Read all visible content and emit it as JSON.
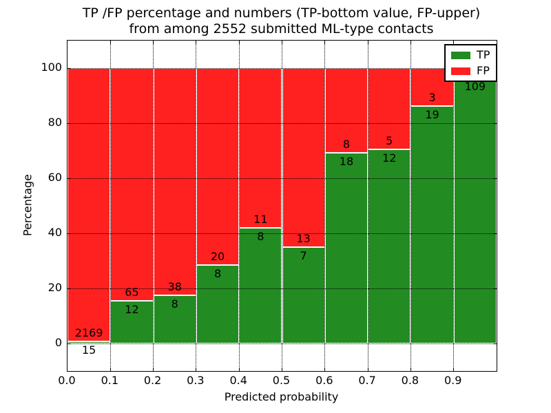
{
  "chart_data": {
    "type": "bar",
    "stacked": true,
    "normalized": "percent",
    "title_line1": "TP /FP percentage and numbers (TP-bottom value, FP-upper)",
    "title_line2": "from among 2552 submitted ML-type contacts",
    "xlabel": "Predicted probability",
    "ylabel": "Percentage",
    "total_contacts": 2552,
    "ylim": [
      -10,
      110
    ],
    "xlim": [
      0.0,
      1.0
    ],
    "grid": "dotted",
    "yticks": [
      {
        "value": 0,
        "label": "0"
      },
      {
        "value": 20,
        "label": "20"
      },
      {
        "value": 40,
        "label": "40"
      },
      {
        "value": 60,
        "label": "60"
      },
      {
        "value": 80,
        "label": "80"
      },
      {
        "value": 100,
        "label": "100"
      }
    ],
    "xticks": [
      "0.0",
      "0.1",
      "0.2",
      "0.3",
      "0.4",
      "0.5",
      "0.6",
      "0.7",
      "0.8",
      "0.9"
    ],
    "colors": {
      "tp": "#228b22",
      "fp": "#ff2020"
    },
    "legend": {
      "position": "upper right",
      "entries": [
        {
          "label": "TP",
          "color": "#228b22"
        },
        {
          "label": "FP",
          "color": "#ff2020"
        }
      ]
    },
    "bins": [
      {
        "x_start": 0.0,
        "tp_count": 15,
        "fp_count": 2169,
        "tp_percent": 0.69
      },
      {
        "x_start": 0.1,
        "tp_count": 12,
        "fp_count": 65,
        "tp_percent": 15.58
      },
      {
        "x_start": 0.2,
        "tp_count": 8,
        "fp_count": 38,
        "tp_percent": 17.39
      },
      {
        "x_start": 0.3,
        "tp_count": 8,
        "fp_count": 20,
        "tp_percent": 28.57
      },
      {
        "x_start": 0.4,
        "tp_count": 8,
        "fp_count": 11,
        "tp_percent": 42.11
      },
      {
        "x_start": 0.5,
        "tp_count": 7,
        "fp_count": 13,
        "tp_percent": 35.0
      },
      {
        "x_start": 0.6,
        "tp_count": 18,
        "fp_count": 8,
        "tp_percent": 69.23
      },
      {
        "x_start": 0.7,
        "tp_count": 12,
        "fp_count": 5,
        "tp_percent": 70.59
      },
      {
        "x_start": 0.8,
        "tp_count": 19,
        "fp_count": 3,
        "tp_percent": 86.36
      },
      {
        "x_start": 0.9,
        "tp_count": 109,
        "fp_count": null,
        "tp_percent": 96.46
      }
    ]
  }
}
